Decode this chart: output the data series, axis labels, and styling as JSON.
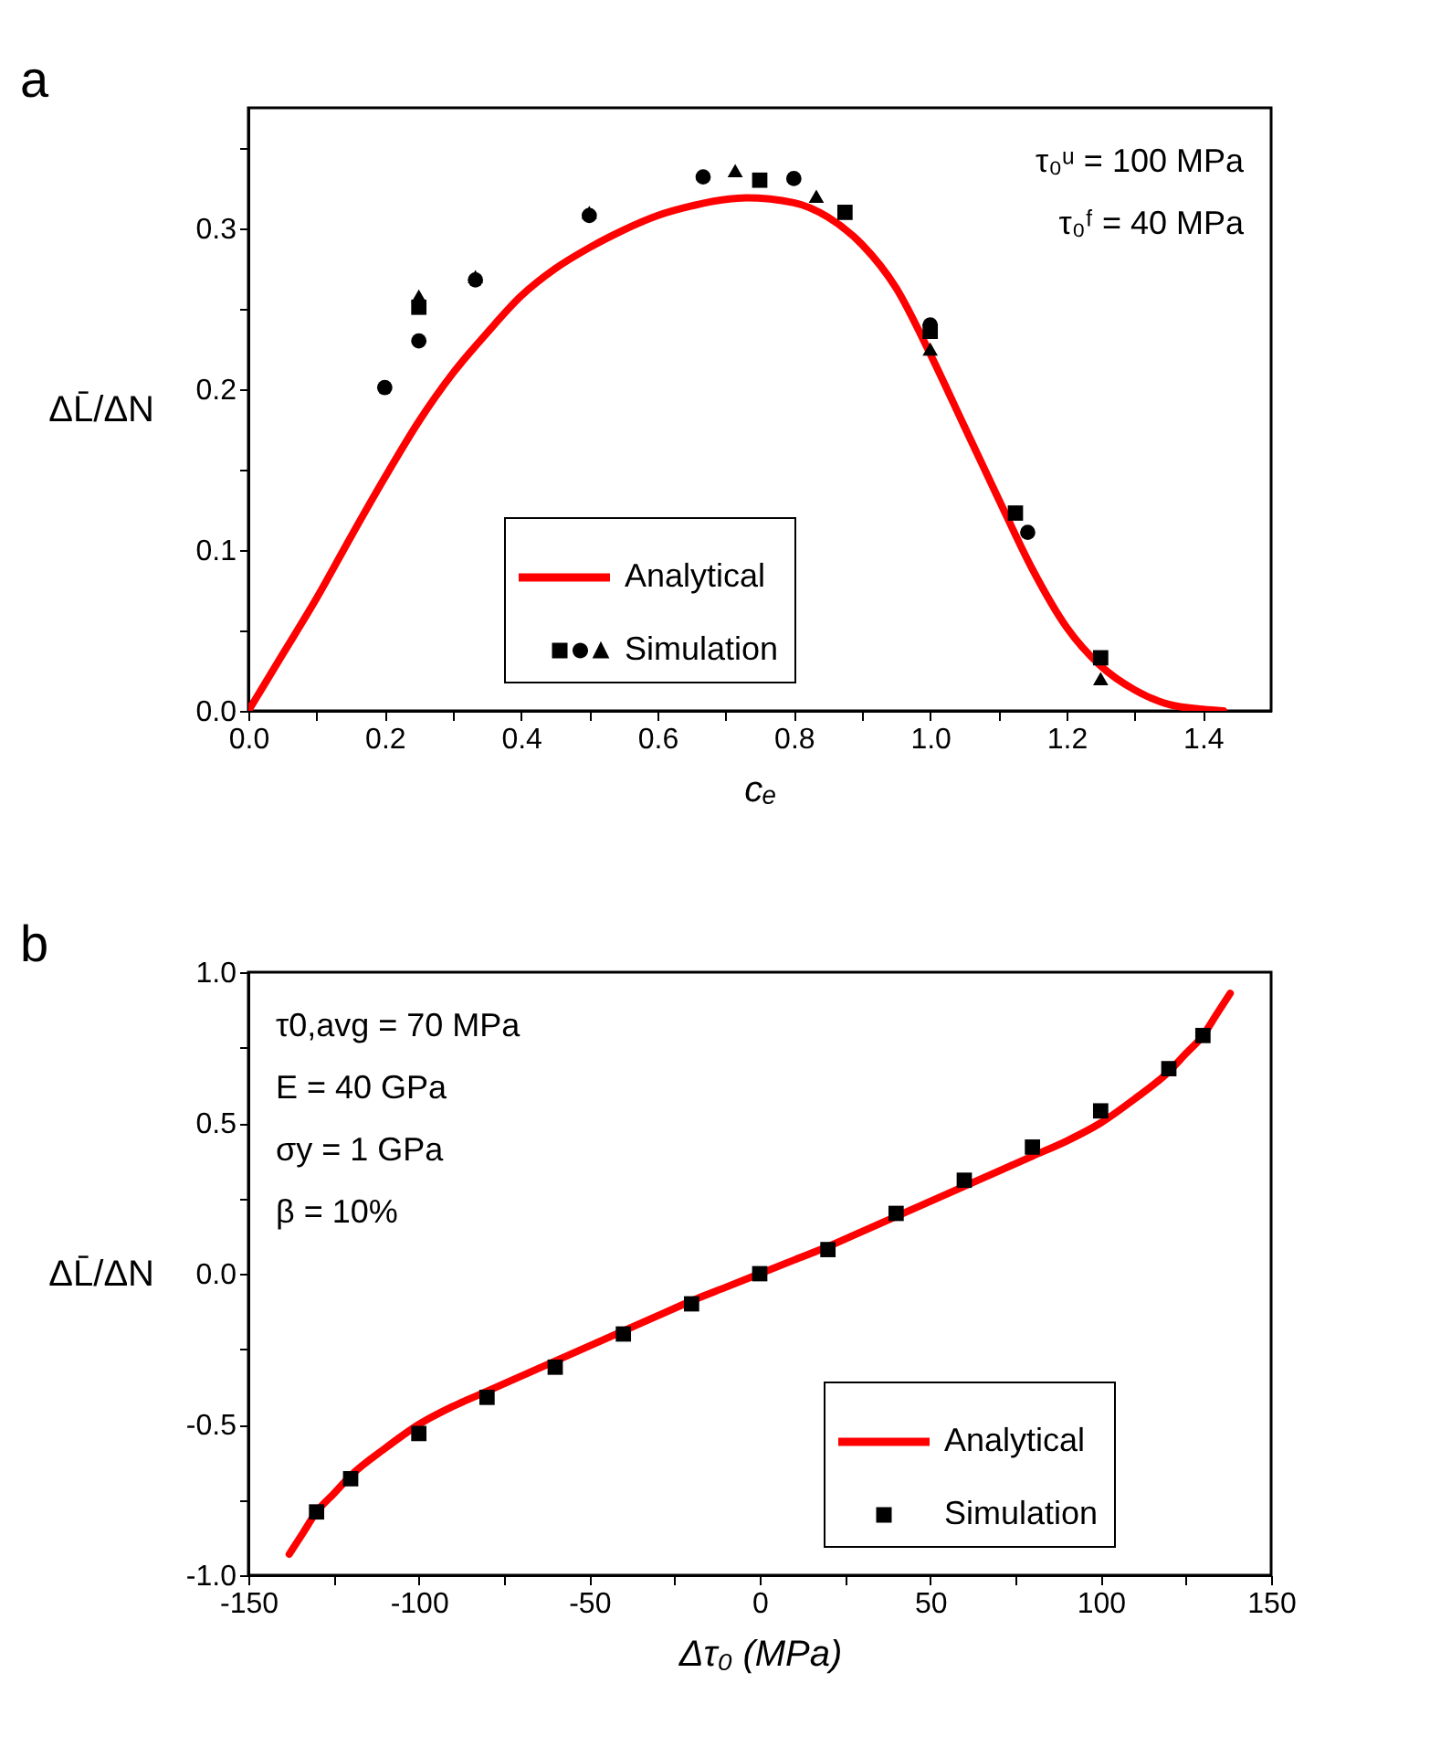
{
  "chart_data": [
    {
      "type": "line",
      "title": "a",
      "xlabel": "cₑ",
      "ylabel": "ΔL̄/ΔN",
      "xlim": [
        0,
        1.5
      ],
      "xticks": [
        {
          "value": 0,
          "label": "0.0"
        },
        {
          "value": 0.1,
          "label": null
        },
        {
          "value": 0.2,
          "label": "0.2"
        },
        {
          "value": 0.3,
          "label": null
        },
        {
          "value": 0.4,
          "label": "0.4"
        },
        {
          "value": 0.5,
          "label": null
        },
        {
          "value": 0.6,
          "label": "0.6"
        },
        {
          "value": 0.7,
          "label": null
        },
        {
          "value": 0.8,
          "label": "0.8"
        },
        {
          "value": 0.9,
          "label": null
        },
        {
          "value": 1.0,
          "label": "1.0"
        },
        {
          "value": 1.1,
          "label": null
        },
        {
          "value": 1.2,
          "label": "1.2"
        },
        {
          "value": 1.3,
          "label": null
        },
        {
          "value": 1.4,
          "label": "1.4"
        }
      ],
      "ylim": [
        0,
        0.375
      ],
      "yticks": [
        {
          "value": 0,
          "label": "0.0"
        },
        {
          "value": 0.05,
          "label": null
        },
        {
          "value": 0.1,
          "label": "0.1"
        },
        {
          "value": 0.15,
          "label": null
        },
        {
          "value": 0.2,
          "label": "0.2"
        },
        {
          "value": 0.25,
          "label": null
        },
        {
          "value": 0.3,
          "label": "0.3"
        },
        {
          "value": 0.35,
          "label": null
        }
      ],
      "grid": false,
      "legend": "bottom",
      "annotations": [
        "τ₀ᵘ = 100 MPa",
        "τ₀ᶠ = 40 MPa"
      ],
      "series": [
        {
          "name": "Analytical",
          "type": "line",
          "color": "#ff0000",
          "line_style": "solid",
          "marker": "none",
          "x": [
            0,
            0.05,
            0.1,
            0.15,
            0.2,
            0.25,
            0.3,
            0.35,
            0.4,
            0.45,
            0.5,
            0.55,
            0.6,
            0.65,
            0.7,
            0.73,
            0.8,
            0.85,
            0.9,
            0.95,
            1.0,
            1.05,
            1.1,
            1.15,
            1.2,
            1.25,
            1.3,
            1.35,
            1.4,
            1.43
          ],
          "values": [
            0,
            0.035,
            0.07,
            0.108,
            0.145,
            0.18,
            0.21,
            0.235,
            0.258,
            0.275,
            0.288,
            0.299,
            0.308,
            0.314,
            0.318,
            0.319,
            0.316,
            0.307,
            0.29,
            0.263,
            0.222,
            0.177,
            0.132,
            0.088,
            0.052,
            0.028,
            0.013,
            0.004,
            0.001,
            0
          ]
        },
        {
          "name": "Simulation",
          "type": "scatter",
          "color": "#000000",
          "marker": "square",
          "x": [
            0.25,
            0.75,
            0.875,
            1.0,
            1.125,
            1.25
          ],
          "values": [
            0.251,
            0.33,
            0.31,
            0.236,
            0.123,
            0.033
          ]
        },
        {
          "type": "scatter",
          "color": "#000000",
          "marker": "circle",
          "x": [
            0.2,
            0.25,
            0.333,
            0.5,
            0.667,
            0.8,
            1.0,
            1.143
          ],
          "values": [
            0.201,
            0.23,
            0.268,
            0.308,
            0.332,
            0.331,
            0.24,
            0.111
          ]
        },
        {
          "type": "scatter",
          "color": "#000000",
          "marker": "triangle",
          "x": [
            0.25,
            0.333,
            0.5,
            0.714,
            0.833,
            1.0,
            1.25
          ],
          "values": [
            0.258,
            0.27,
            0.31,
            0.336,
            0.32,
            0.225,
            0.02
          ]
        }
      ]
    },
    {
      "type": "line",
      "title": "b",
      "xlabel": "Δτ₀ (MPa)",
      "ylabel": "ΔL̄/ΔN",
      "xlim": [
        -150,
        150
      ],
      "xticks": [
        -150,
        {
          "value": -125,
          "label": null
        },
        -100,
        {
          "value": -75,
          "label": null
        },
        -50,
        {
          "value": -25,
          "label": null
        },
        0,
        {
          "value": 25,
          "label": null
        },
        50,
        {
          "value": 75,
          "label": null
        },
        100,
        {
          "value": 125,
          "label": null
        },
        150
      ],
      "ylim": [
        -1,
        1
      ],
      "yticks": [
        {
          "value": -1,
          "label": "-1.0"
        },
        {
          "value": -0.75,
          "label": null
        },
        -0.5,
        {
          "value": -0.25,
          "label": null
        },
        {
          "value": 0,
          "label": "0.0"
        },
        {
          "value": 0.25,
          "label": null
        },
        0.5,
        {
          "value": 0.75,
          "label": null
        },
        {
          "value": 1,
          "label": "1.0"
        }
      ],
      "grid": false,
      "legend": "bottom right",
      "annotations": [
        "τ0,avg = 70 MPa",
        "E = 40 GPa",
        "σy = 1 GPa",
        "β = 10%"
      ],
      "series": [
        {
          "name": "Analytical",
          "type": "line",
          "color": "#ff0000",
          "line_style": "solid",
          "marker": "none",
          "x": [
            -138,
            -134,
            -130,
            -125,
            -120,
            -110,
            -100,
            -90,
            -80,
            -70,
            -60,
            -50,
            -40,
            -30,
            -20,
            -10,
            0,
            10,
            20,
            30,
            40,
            50,
            60,
            70,
            80,
            90,
            100,
            110,
            120,
            125,
            130,
            134,
            138
          ],
          "values": [
            -0.93,
            -0.86,
            -0.79,
            -0.73,
            -0.67,
            -0.58,
            -0.5,
            -0.44,
            -0.39,
            -0.34,
            -0.29,
            -0.24,
            -0.19,
            -0.14,
            -0.09,
            -0.045,
            0,
            0.045,
            0.09,
            0.14,
            0.19,
            0.24,
            0.29,
            0.34,
            0.39,
            0.44,
            0.5,
            0.58,
            0.67,
            0.73,
            0.79,
            0.86,
            0.93
          ]
        },
        {
          "name": "Simulation",
          "type": "scatter",
          "color": "#000000",
          "marker": "square",
          "x": [
            -130,
            -120,
            -100,
            -80,
            -60,
            -40,
            -20,
            0,
            20,
            40,
            60,
            80,
            100,
            120,
            130
          ],
          "values": [
            -0.79,
            -0.68,
            -0.53,
            -0.41,
            -0.31,
            -0.2,
            -0.1,
            0,
            0.08,
            0.2,
            0.31,
            0.42,
            0.54,
            0.68,
            0.79
          ]
        }
      ]
    }
  ]
}
